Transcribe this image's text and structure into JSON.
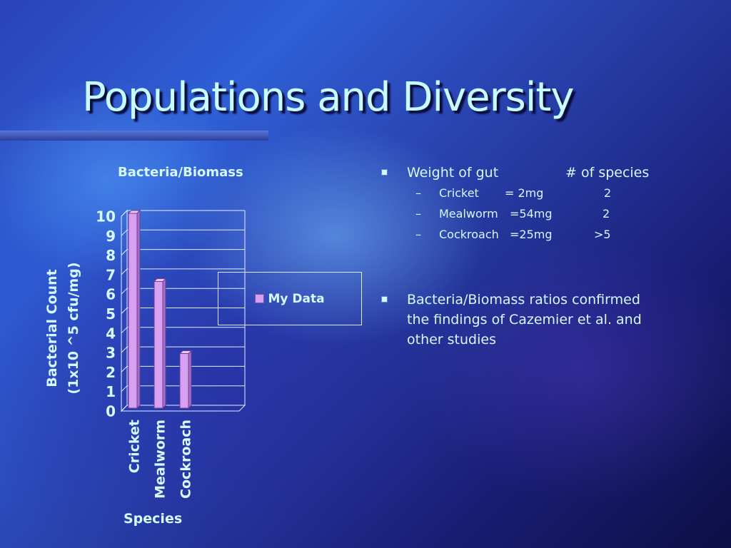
{
  "slide": {
    "title": "Populations and Diversity"
  },
  "chart_data": {
    "type": "bar",
    "title": "Bacteria/Biomass",
    "categories": [
      "Cricket",
      "Mealworm",
      "Cockroach"
    ],
    "series": [
      {
        "name": "My Data",
        "values": [
          10,
          6.5,
          2.8
        ]
      }
    ],
    "ylabel_lines": [
      "Bacterial Count",
      "(1x10 ^5 cfu/mg)"
    ],
    "xlabel": "Species",
    "ylim": [
      0,
      10
    ],
    "yticks": [
      "0",
      "1",
      "2",
      "3",
      "4",
      "5",
      "6",
      "7",
      "8",
      "9",
      "10"
    ],
    "grid": true,
    "legend": "right",
    "bar_color": "#d8a0f0"
  },
  "bullets": [
    {
      "text_left": "Weight of gut",
      "text_right": "# of species",
      "sub": [
        {
          "name": "Cricket",
          "weight": "= 2mg",
          "species": "2"
        },
        {
          "name": "Mealworm",
          "weight": "=54mg",
          "species": "2"
        },
        {
          "name": "Cockroach",
          "weight": "=25mg",
          "species": ">5"
        }
      ]
    },
    {
      "text": "Bacteria/Biomass ratios confirmed the findings of Cazemier et al. and other studies"
    }
  ]
}
